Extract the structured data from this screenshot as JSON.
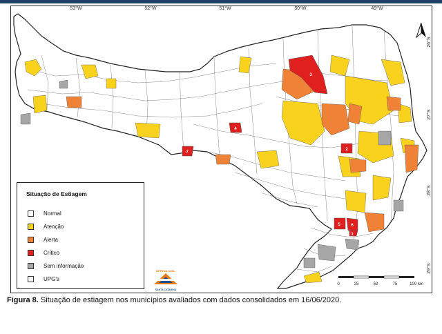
{
  "figure": {
    "label": "Figura 8.",
    "text": " Situação de estiagem nos municípios avaliados com dados consolidados em 16/06/2020."
  },
  "map": {
    "longitude_ticks": [
      "53°W",
      "52°W",
      "51°W",
      "50°W",
      "49°W"
    ],
    "latitude_ticks": [
      "26°S",
      "27°S",
      "28°S",
      "29°S"
    ],
    "critical_markers": [
      "1",
      "2",
      "3",
      "4",
      "5",
      "6",
      "7"
    ]
  },
  "legend": {
    "title": "Situação de Estiagem",
    "items": [
      {
        "label": "Normal",
        "color": "#ffffff"
      },
      {
        "label": "Atenção",
        "color": "#f9d21e"
      },
      {
        "label": "Alerta",
        "color": "#ef8236"
      },
      {
        "label": "Crítico",
        "color": "#e01f1f"
      },
      {
        "label": "Sem informação",
        "color": "#a6a6a6"
      },
      {
        "label": "UPG's",
        "color": "#ffffff"
      }
    ]
  },
  "scale_bar": {
    "ticks": [
      "0",
      "25",
      "50",
      "75",
      "100 km"
    ]
  },
  "logo": {
    "line1": "DEFESA CIVIL",
    "line2": "SANTA CATARINA"
  },
  "colors": {
    "normal": "#ffffff",
    "attention": "#f9d21e",
    "alert": "#ef8236",
    "critical": "#e01f1f",
    "no_info": "#a6a6a6",
    "border": "#222222"
  }
}
